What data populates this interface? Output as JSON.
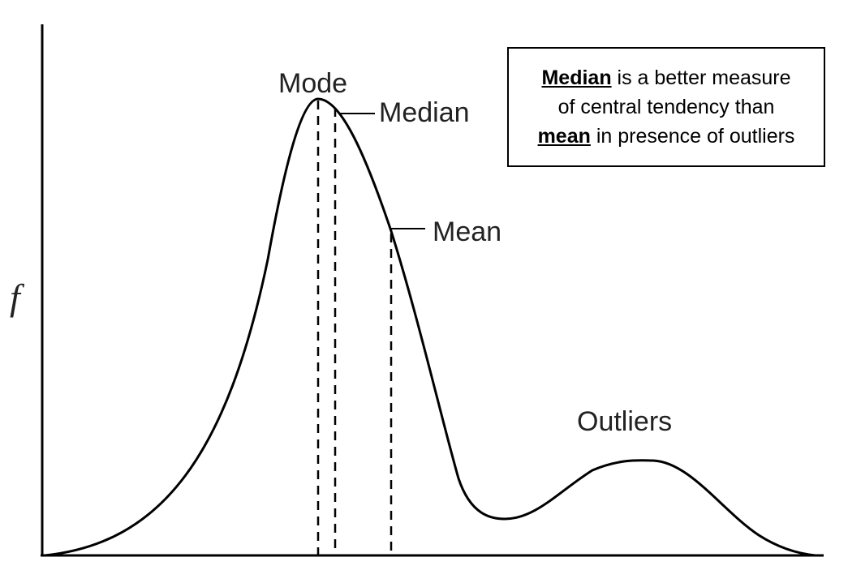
{
  "labels": {
    "y_axis": "f",
    "mode": "Mode",
    "median": "Median",
    "mean": "Mean",
    "outliers": "Outliers"
  },
  "note": {
    "line1_keyword": "Median",
    "line1_rest": " is a better measure",
    "line2": "of central tendency than",
    "line3_keyword": "mean",
    "line3_rest": " in presence of outliers"
  },
  "colors": {
    "curve": "#000000",
    "text": "#222222"
  }
}
